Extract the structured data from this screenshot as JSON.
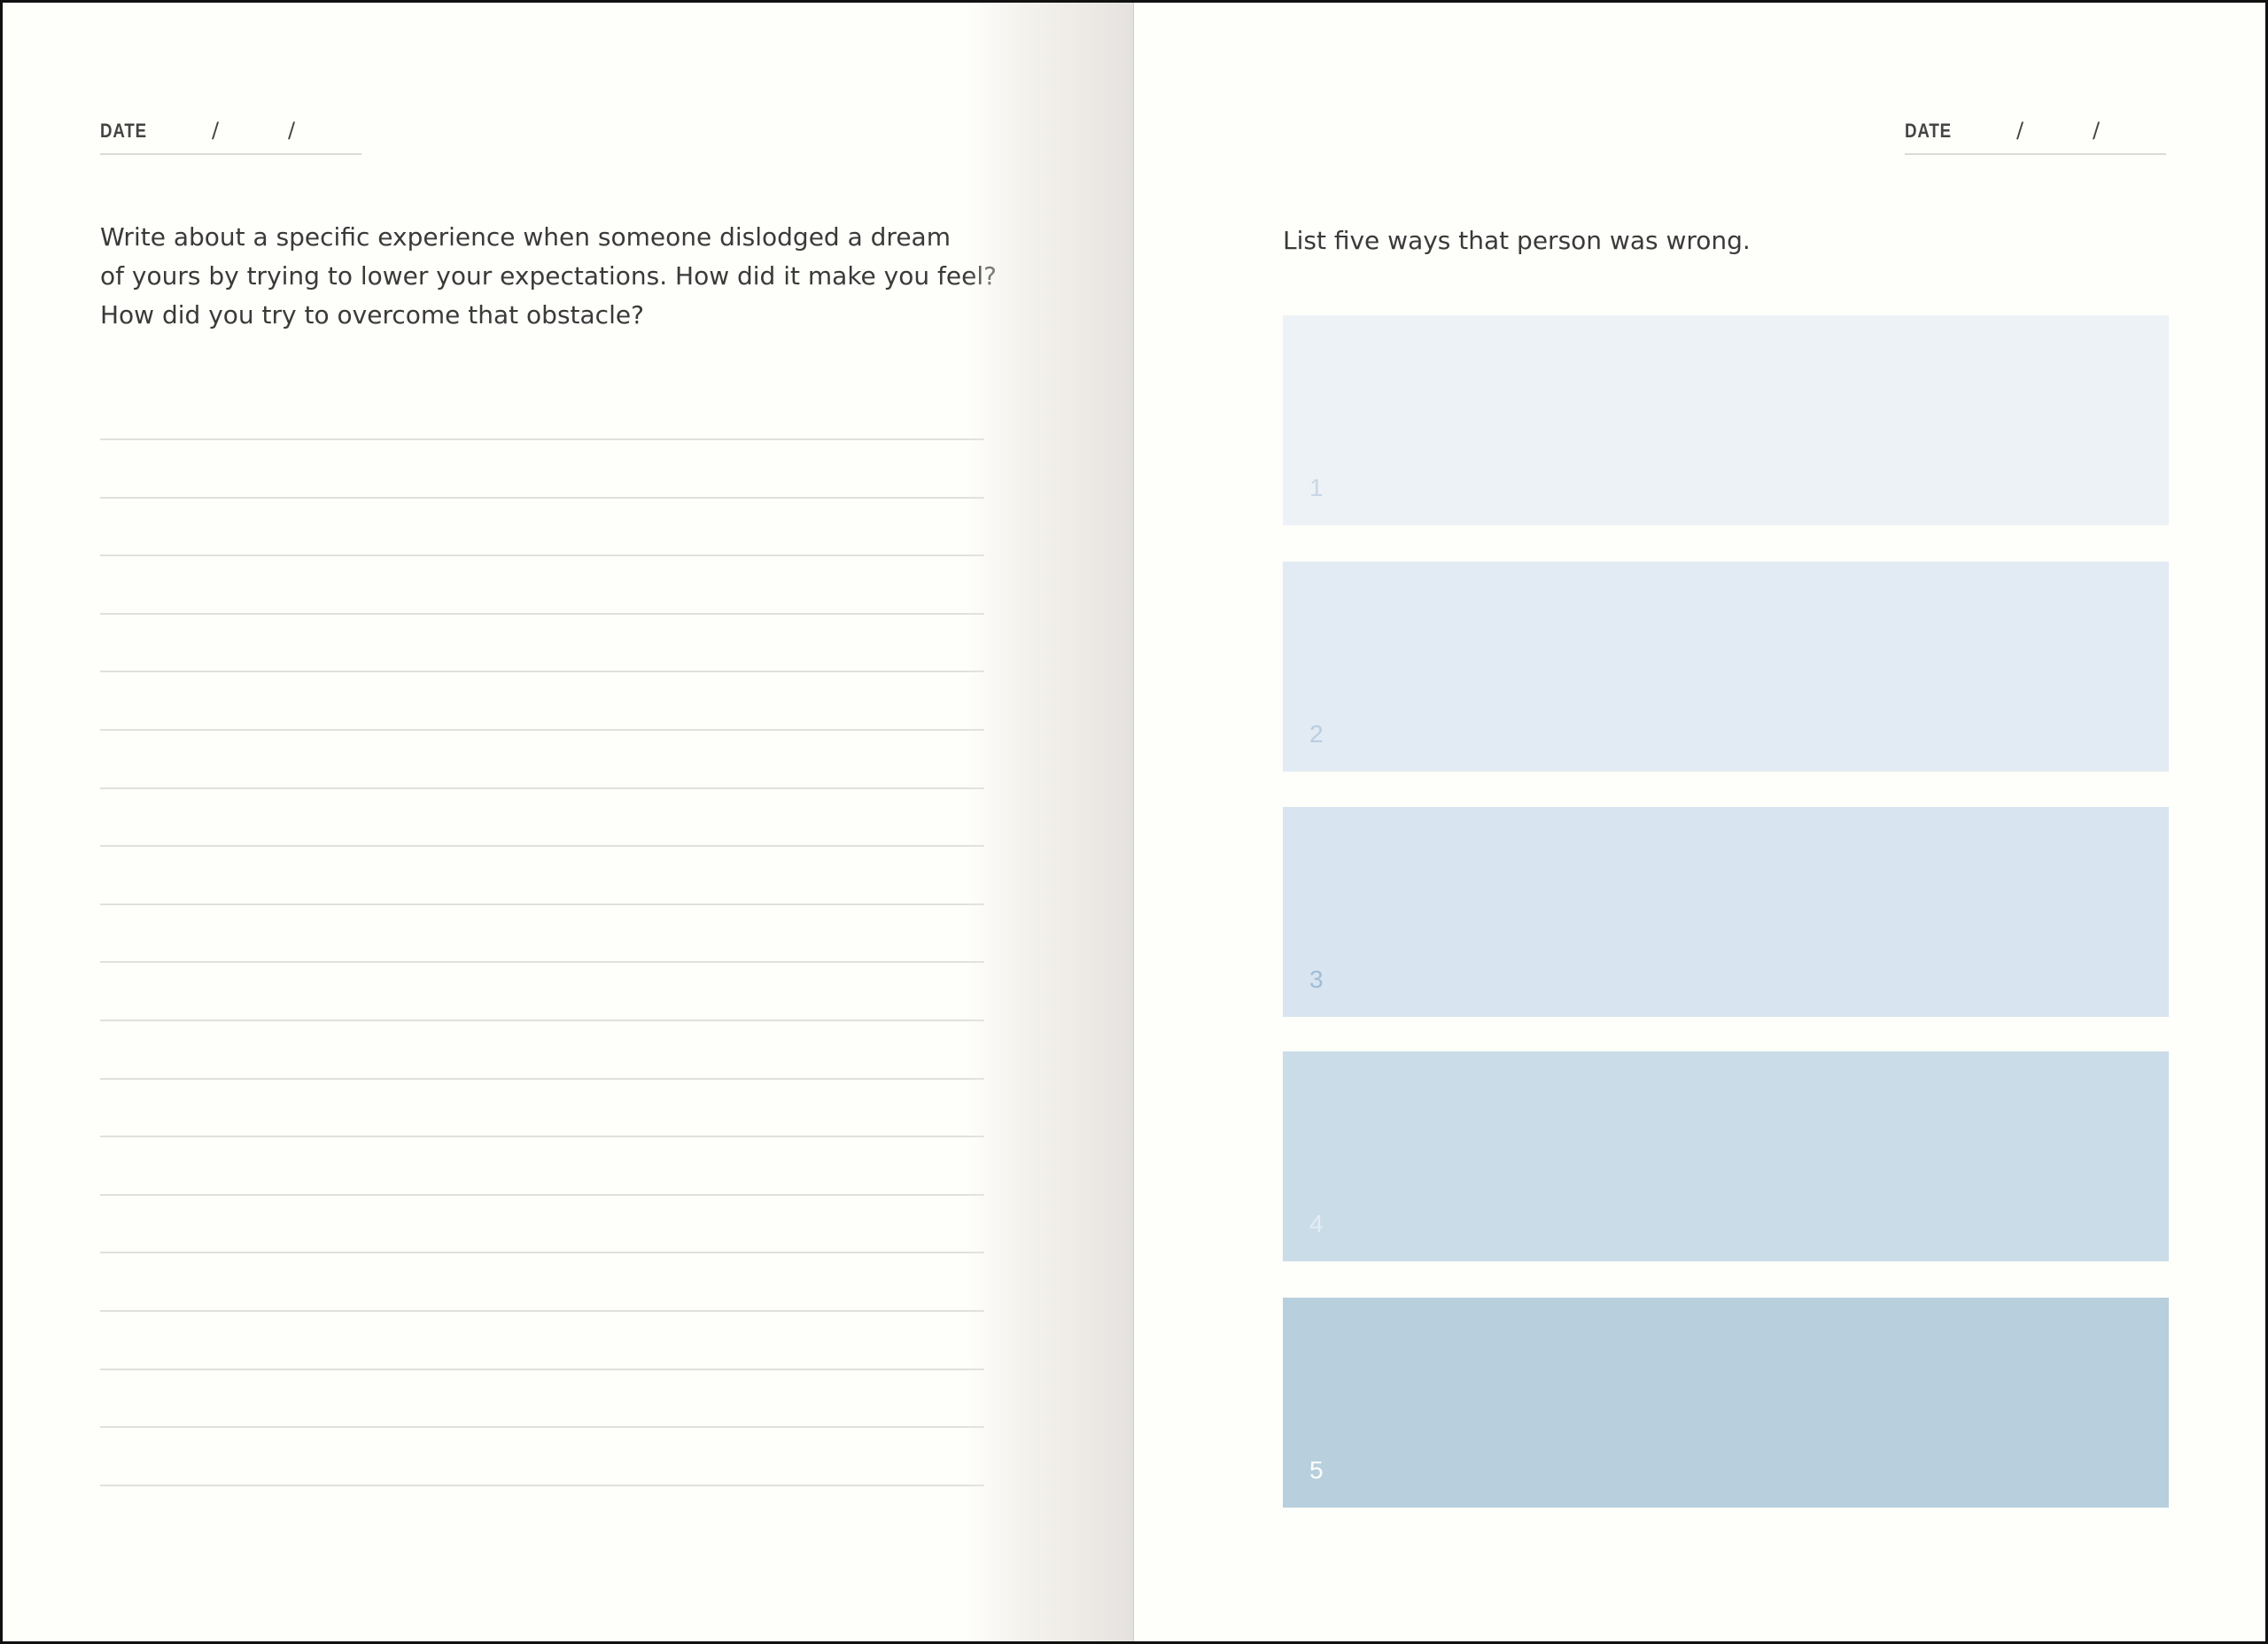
{
  "left_page": {
    "date_label": "DATE",
    "date_separator": "/",
    "prompt_lines": [
      "Write about a specific experience when someone dislodged a dream",
      "of yours by trying to lower your expectations. How did it make you feel?",
      "How did you try to overcome that obstacle?"
    ]
  },
  "right_page": {
    "date_label": "DATE",
    "date_separator": "/",
    "prompt": "List five ways that person was wrong.",
    "boxes": [
      {
        "number": "1",
        "color": "#edf2f7",
        "number_color": "#c8d7e6"
      },
      {
        "number": "2",
        "color": "#e2ebf3",
        "number_color": "#b9cde0"
      },
      {
        "number": "3",
        "color": "#d8e4ef",
        "number_color": "#9fbdd8"
      },
      {
        "number": "4",
        "color": "#cadce7",
        "number_color": "#e4ecf4"
      },
      {
        "number": "5",
        "color": "#b8cfdd",
        "number_color": "#ffffff"
      }
    ]
  }
}
